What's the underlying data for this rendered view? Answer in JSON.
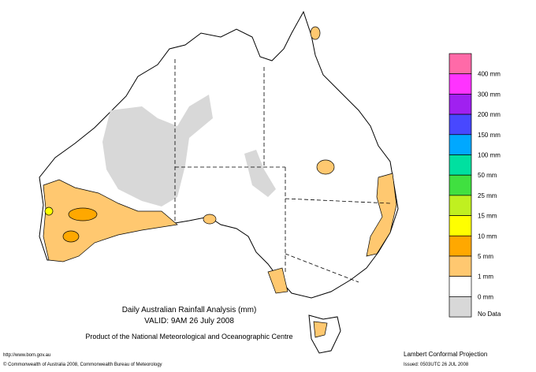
{
  "header": {
    "title": "Daily Australian Rainfall Analysis (mm)",
    "valid": "VALID: 9AM 26 July 2008",
    "product": "Product of the National Meteorological and Oceanographic Centre"
  },
  "legend": {
    "colors": [
      "#ff6aa8",
      "#ff33ff",
      "#a020f0",
      "#4848ff",
      "#00a8ff",
      "#00e0a0",
      "#40e040",
      "#c0f020",
      "#ffff00",
      "#ffa800",
      "#ffc870",
      "#ffffff",
      "#d8d8d8"
    ],
    "labels": [
      "400 mm",
      "300 mm",
      "200 mm",
      "150 mm",
      "100 mm",
      "50 mm",
      "25 mm",
      "15 mm",
      "10 mm",
      "5 mm",
      "1 mm",
      "0 mm",
      "No Data"
    ]
  },
  "footer": {
    "url": "http://www.bom.gov.au",
    "copyright": "© Commonwealth of Australia 2008, Commonwealth Bureau of Meteorology",
    "projection": "Lambert Conformal Projection",
    "issued": "Issued: 0503UTC 26 JUL 2008"
  }
}
